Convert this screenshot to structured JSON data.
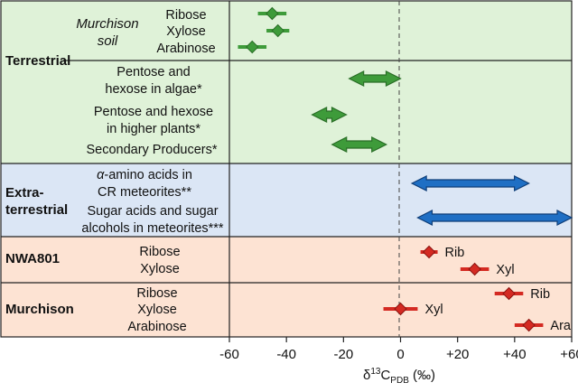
{
  "chart_data": {
    "type": "range-plot",
    "xlabel": "δ13CPDB (‰)",
    "xlim": [
      -60,
      60
    ],
    "x_ticks": [
      "-60",
      "-40",
      "-20",
      "0",
      "+20",
      "+40",
      "+60"
    ],
    "groups": [
      {
        "id": "terrestrial",
        "label": "Terrestrial",
        "color": "#dff2d8",
        "rows": [
          {
            "label": "Ribose",
            "kind": "point",
            "value": -45,
            "err": 5
          },
          {
            "label": "Xylose",
            "kind": "point",
            "value": -43,
            "err": 4
          },
          {
            "label": "Arabinose",
            "kind": "point",
            "value": -52,
            "err": 5
          },
          {
            "label": "Pentose and hexose in algae*",
            "kind": "range",
            "from": -18,
            "to": 0
          },
          {
            "label": "Pentose and hexose in higher plants*",
            "kind": "range",
            "from": -31,
            "to": -19
          },
          {
            "label": "Secondary Producers*",
            "kind": "range",
            "from": -24,
            "to": -5
          }
        ],
        "sublabel": "Murchison soil"
      },
      {
        "id": "extraterrestrial",
        "label": "Extra-terrestrial",
        "color": "#dbe6f5",
        "rows": [
          {
            "label": "α-amino acids in CR meteorites**",
            "kind": "range",
            "from": 4,
            "to": 45
          },
          {
            "label": "Sugar acids and sugar alcohols in meteorites***",
            "kind": "range",
            "from": 6,
            "to": 60
          }
        ]
      },
      {
        "id": "nwa801",
        "label": "NWA801",
        "color": "#fde3d3",
        "rows": [
          {
            "label": "Ribose",
            "kind": "point",
            "value": 10,
            "err": 3,
            "tag": "Rib"
          },
          {
            "label": "Xylose",
            "kind": "point",
            "value": 26,
            "err": 5,
            "tag": "Xyl"
          }
        ]
      },
      {
        "id": "murchison",
        "label": "Murchison",
        "color": "#fde3d3",
        "rows": [
          {
            "label": "Ribose",
            "kind": "point",
            "value": 38,
            "err": 5,
            "tag": "Rib"
          },
          {
            "label": "Xylose",
            "kind": "point",
            "value": 0,
            "err": 6,
            "tag": "Xyl"
          },
          {
            "label": "Arabinose",
            "kind": "point",
            "value": 45,
            "err": 5,
            "tag": "Ara"
          }
        ]
      }
    ],
    "colors": {
      "terrestrial_mark": "#3e9b3a",
      "terrestrial_dark": "#2a6e27",
      "extraterrestrial_mark": "#1f6fc4",
      "extraterrestrial_dark": "#0f3e78",
      "meteorite_mark": "#d42a22",
      "meteorite_dark": "#8a130f"
    },
    "zero_line": "dashed",
    "grid": false
  }
}
